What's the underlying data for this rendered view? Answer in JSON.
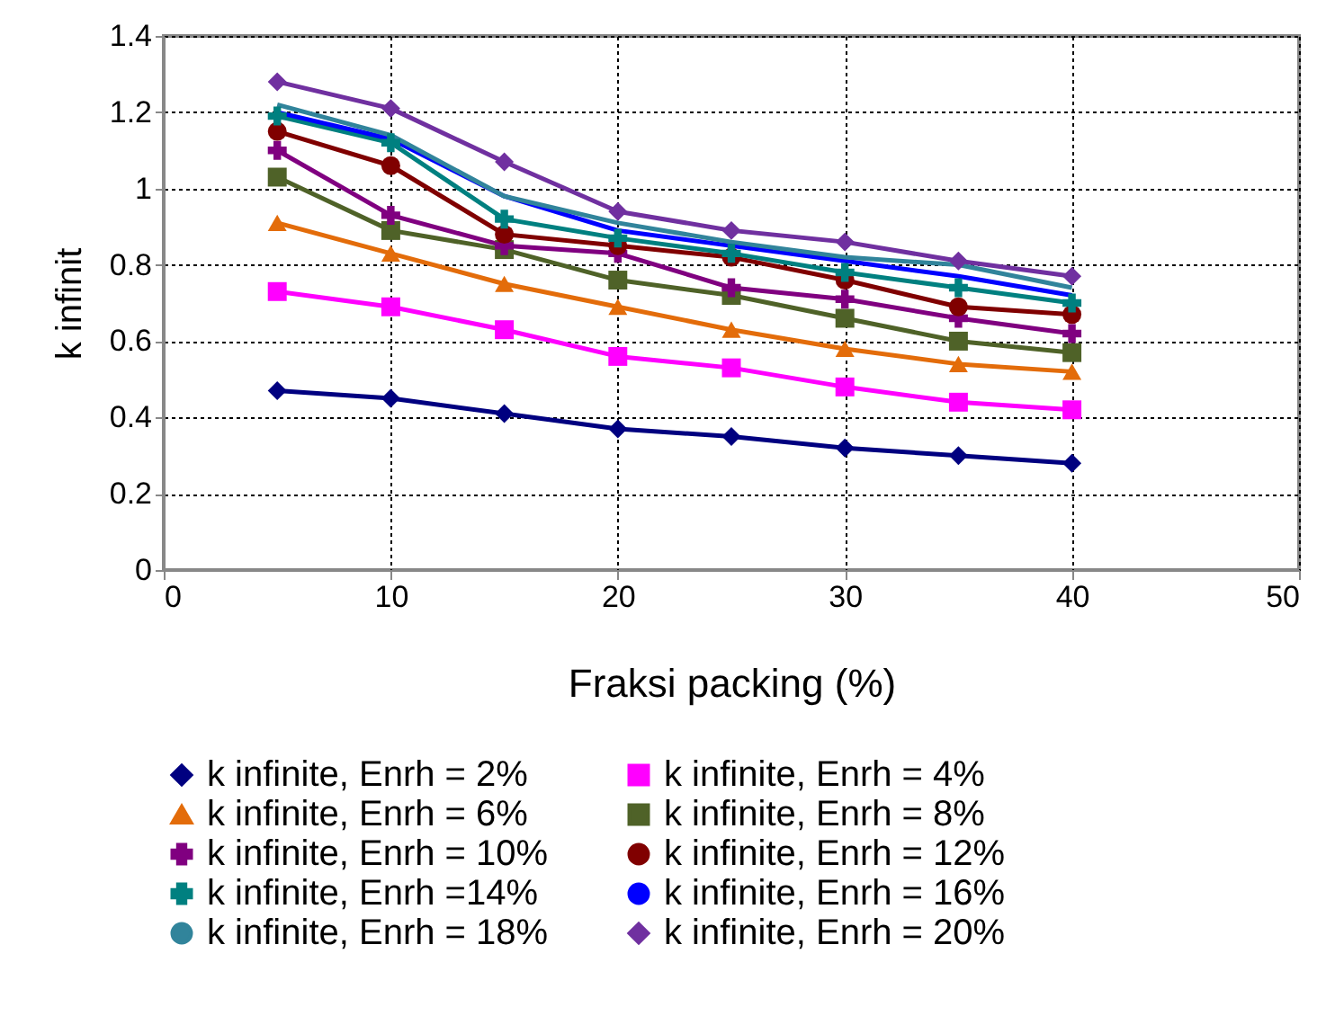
{
  "chart_data": {
    "type": "line",
    "xlabel": "Fraksi packing (%)",
    "ylabel": "k infinit",
    "x": [
      5,
      10,
      15,
      20,
      25,
      30,
      35,
      40
    ],
    "xlim": [
      0,
      50
    ],
    "xticks": [
      0,
      10,
      20,
      30,
      40,
      50
    ],
    "ylim": [
      0,
      1.4
    ],
    "yticks": [
      0,
      0.2,
      0.4,
      0.6,
      0.8,
      1,
      1.2,
      1.4
    ],
    "grid": true,
    "legend": "bottom",
    "series": [
      {
        "name": "k infinite, Enrh = 2%",
        "color": "#000080",
        "marker": "diamond",
        "values": [
          0.47,
          0.45,
          0.41,
          0.37,
          0.35,
          0.32,
          0.3,
          0.28
        ]
      },
      {
        "name": "k infinite, Enrh = 4%",
        "color": "#ff00ff",
        "marker": "square",
        "values": [
          0.73,
          0.69,
          0.63,
          0.56,
          0.53,
          0.48,
          0.44,
          0.42
        ]
      },
      {
        "name": "k infinite, Enrh = 6%",
        "color": "#e36c0a",
        "marker": "triangle",
        "values": [
          0.91,
          0.83,
          0.75,
          0.69,
          0.63,
          0.58,
          0.54,
          0.52
        ]
      },
      {
        "name": "k infinite, Enrh = 8%",
        "color": "#4f6228",
        "marker": "square",
        "values": [
          1.03,
          0.89,
          0.84,
          0.76,
          0.72,
          0.66,
          0.6,
          0.57
        ]
      },
      {
        "name": "k infinite, Enrh = 10%",
        "color": "#800080",
        "marker": "cross",
        "values": [
          1.1,
          0.93,
          0.85,
          0.83,
          0.74,
          0.71,
          0.66,
          0.62
        ]
      },
      {
        "name": "k infinite, Enrh = 12%",
        "color": "#800000",
        "marker": "circle",
        "values": [
          1.15,
          1.06,
          0.88,
          0.85,
          0.82,
          0.76,
          0.69,
          0.67
        ]
      },
      {
        "name": "k infinite, Enrh =14%",
        "color": "#008080",
        "marker": "cross",
        "values": [
          1.19,
          1.12,
          0.92,
          0.87,
          0.83,
          0.78,
          0.74,
          0.7
        ]
      },
      {
        "name": "k infinite, Enrh = 16%",
        "color": "#0000ff",
        "marker": "none",
        "values": [
          1.2,
          1.13,
          0.98,
          0.89,
          0.85,
          0.81,
          0.77,
          0.72
        ]
      },
      {
        "name": "k infinite, Enrh = 18%",
        "color": "#31849b",
        "marker": "none",
        "values": [
          1.22,
          1.14,
          0.98,
          0.91,
          0.86,
          0.82,
          0.8,
          0.74
        ]
      },
      {
        "name": "k infinite, Enrh = 20%",
        "color": "#7030a0",
        "marker": "diamond",
        "values": [
          1.28,
          1.21,
          1.07,
          0.94,
          0.89,
          0.86,
          0.81,
          0.77
        ]
      }
    ]
  }
}
